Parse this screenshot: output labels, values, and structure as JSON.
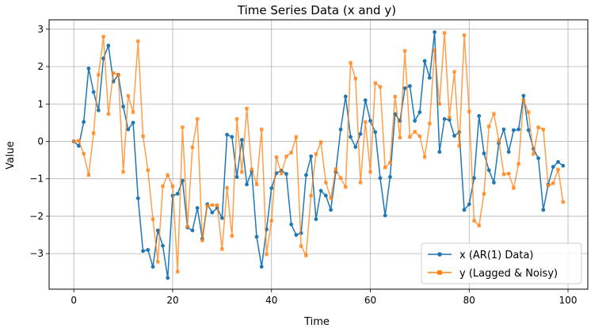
{
  "chart_data": {
    "type": "line",
    "title": "Time Series Data (x and y)",
    "xlabel": "Time",
    "ylabel": "Value",
    "xlim": [
      -5,
      104
    ],
    "ylim": [
      -3.95,
      3.25
    ],
    "xticks": [
      0,
      20,
      40,
      60,
      80,
      100
    ],
    "yticks": [
      -3,
      -2,
      -1,
      0,
      1,
      2,
      3
    ],
    "grid": true,
    "legend": "lower-right",
    "series": [
      {
        "name": "x (AR(1) Data)",
        "color": "#1f77b4",
        "marker": "circle",
        "x": [
          0,
          1,
          2,
          3,
          4,
          5,
          6,
          7,
          8,
          9,
          10,
          11,
          12,
          13,
          14,
          15,
          16,
          17,
          18,
          19,
          20,
          21,
          22,
          23,
          24,
          25,
          26,
          27,
          28,
          29,
          30,
          31,
          32,
          33,
          34,
          35,
          36,
          37,
          38,
          39,
          40,
          41,
          42,
          43,
          44,
          45,
          46,
          47,
          48,
          49,
          50,
          51,
          52,
          53,
          54,
          55,
          56,
          57,
          58,
          59,
          60,
          61,
          62,
          63,
          64,
          65,
          66,
          67,
          68,
          69,
          70,
          71,
          72,
          73,
          74,
          75,
          76,
          77,
          78,
          79,
          80,
          81,
          82,
          83,
          84,
          85,
          86,
          87,
          88,
          89,
          90,
          91,
          92,
          93,
          94,
          95,
          96,
          97,
          98,
          99
        ],
        "values": [
          0.0,
          -0.12,
          0.52,
          1.95,
          1.32,
          0.83,
          2.22,
          2.56,
          1.6,
          1.78,
          0.93,
          0.32,
          0.5,
          -1.52,
          -2.93,
          -2.9,
          -3.35,
          -2.38,
          -2.79,
          -3.65,
          -1.45,
          -1.4,
          -1.05,
          -2.3,
          -2.38,
          -1.78,
          -2.6,
          -1.68,
          -1.9,
          -1.78,
          -2.05,
          0.18,
          0.12,
          -0.95,
          0.04,
          -1.15,
          -0.8,
          -2.55,
          -3.35,
          -2.35,
          -1.25,
          -0.85,
          -0.78,
          -0.87,
          -2.22,
          -2.5,
          -2.45,
          -0.9,
          -0.4,
          -2.08,
          -1.32,
          -1.45,
          -1.83,
          -0.82,
          0.32,
          1.2,
          0.12,
          -0.15,
          0.2,
          1.1,
          0.55,
          0.25,
          -0.98,
          -1.98,
          -0.95,
          0.73,
          0.55,
          1.42,
          1.48,
          0.55,
          0.78,
          2.15,
          1.7,
          2.92,
          -0.28,
          0.6,
          0.58,
          0.15,
          0.25,
          -1.83,
          -1.68,
          -0.98,
          0.68,
          -0.32,
          -0.77,
          -1.1,
          -0.05,
          0.32,
          -0.28,
          0.3,
          0.32,
          1.22,
          0.3,
          -0.2,
          -0.45,
          -1.83,
          -1.15,
          -0.68,
          -0.55,
          -0.65
        ]
      },
      {
        "name": "y (Lagged & Noisy)",
        "color": "#ff7f0e",
        "marker": "square",
        "x": [
          0,
          1,
          2,
          3,
          4,
          5,
          6,
          7,
          8,
          9,
          10,
          11,
          12,
          13,
          14,
          15,
          16,
          17,
          18,
          19,
          20,
          21,
          22,
          23,
          24,
          25,
          26,
          27,
          28,
          29,
          30,
          31,
          32,
          33,
          34,
          35,
          36,
          37,
          38,
          39,
          40,
          41,
          42,
          43,
          44,
          45,
          46,
          47,
          48,
          49,
          50,
          51,
          52,
          53,
          54,
          55,
          56,
          57,
          58,
          59,
          60,
          61,
          62,
          63,
          64,
          65,
          66,
          67,
          68,
          69,
          70,
          71,
          72,
          73,
          74,
          75,
          76,
          77,
          78,
          79,
          80,
          81,
          82,
          83,
          84,
          85,
          86,
          87,
          88,
          89,
          90,
          91,
          92,
          93,
          94,
          95,
          96,
          97,
          98,
          99
        ],
        "values": [
          0.0,
          0.02,
          -0.33,
          -0.9,
          0.22,
          1.78,
          2.8,
          0.73,
          1.83,
          1.78,
          -0.82,
          1.22,
          0.78,
          2.68,
          0.14,
          -0.77,
          -2.08,
          -3.22,
          -1.2,
          -0.9,
          -1.2,
          -3.48,
          0.38,
          -2.28,
          -0.16,
          0.6,
          -2.65,
          -1.72,
          -1.7,
          -1.7,
          -2.88,
          -1.24,
          -2.53,
          0.6,
          -0.82,
          0.88,
          -0.75,
          -1.15,
          0.32,
          -3.02,
          -2.12,
          -0.42,
          -0.86,
          -0.4,
          -0.3,
          0.12,
          -2.8,
          -3.05,
          -1.45,
          -0.34,
          -0.02,
          -1.1,
          -1.52,
          -0.74,
          -0.98,
          -1.22,
          2.1,
          1.68,
          -1.1,
          0.52,
          -0.82,
          1.56,
          1.46,
          -0.7,
          -0.57,
          1.2,
          0.1,
          2.42,
          0.12,
          0.26,
          0.14,
          -0.42,
          0.48,
          2.44,
          1.0,
          2.9,
          0.64,
          1.86,
          -0.12,
          2.84,
          0.8,
          -2.12,
          -2.25,
          -1.4,
          0.4,
          0.74,
          0.02,
          -0.88,
          -0.86,
          -1.25,
          -0.6,
          1.1,
          0.78,
          -0.34,
          0.38,
          0.32,
          -1.18,
          -1.12,
          -0.75,
          -1.62
        ]
      }
    ]
  }
}
